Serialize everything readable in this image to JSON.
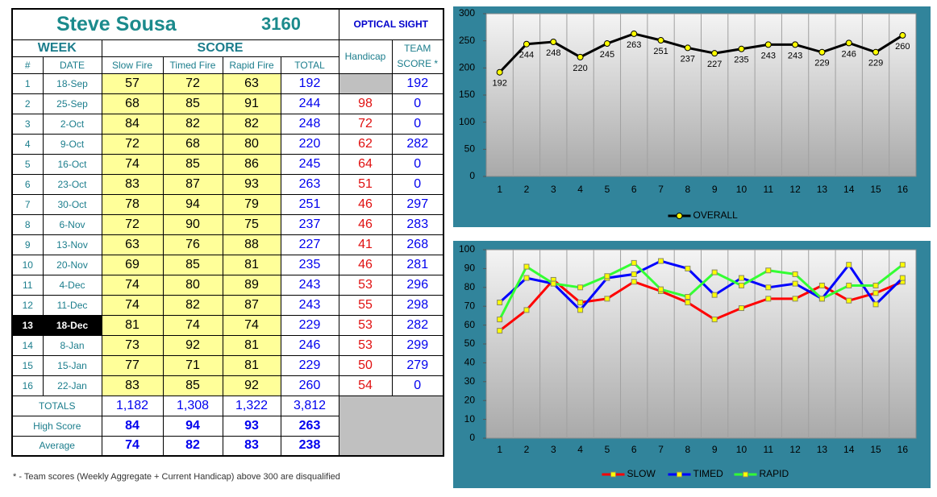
{
  "header": {
    "name": "Steve Sousa",
    "number": "3160",
    "sight": "OPTICAL SIGHT"
  },
  "table": {
    "group_headers": [
      "WEEK",
      "SCORE"
    ],
    "columns": [
      "#",
      "DATE",
      "Slow Fire",
      "Timed Fire",
      "Rapid Fire",
      "TOTAL",
      "Handicap",
      "TEAM SCORE *"
    ],
    "current_week": 13,
    "rows": [
      [
        1,
        "18-Sep",
        57,
        72,
        63,
        192,
        null,
        192
      ],
      [
        2,
        "25-Sep",
        68,
        85,
        91,
        244,
        98,
        0
      ],
      [
        3,
        "2-Oct",
        84,
        82,
        82,
        248,
        72,
        0
      ],
      [
        4,
        "9-Oct",
        72,
        68,
        80,
        220,
        62,
        282
      ],
      [
        5,
        "16-Oct",
        74,
        85,
        86,
        245,
        64,
        0
      ],
      [
        6,
        "23-Oct",
        83,
        87,
        93,
        263,
        51,
        0
      ],
      [
        7,
        "30-Oct",
        78,
        94,
        79,
        251,
        46,
        297
      ],
      [
        8,
        "6-Nov",
        72,
        90,
        75,
        237,
        46,
        283
      ],
      [
        9,
        "13-Nov",
        63,
        76,
        88,
        227,
        41,
        268
      ],
      [
        10,
        "20-Nov",
        69,
        85,
        81,
        235,
        46,
        281
      ],
      [
        11,
        "4-Dec",
        74,
        80,
        89,
        243,
        53,
        296
      ],
      [
        12,
        "11-Dec",
        74,
        82,
        87,
        243,
        55,
        298
      ],
      [
        13,
        "18-Dec",
        81,
        74,
        74,
        229,
        53,
        282
      ],
      [
        14,
        "8-Jan",
        73,
        92,
        81,
        246,
        53,
        299
      ],
      [
        15,
        "15-Jan",
        77,
        71,
        81,
        229,
        50,
        279
      ],
      [
        16,
        "22-Jan",
        83,
        85,
        92,
        260,
        54,
        0
      ]
    ],
    "summary": [
      [
        "TOTALS",
        "1,182",
        "1,308",
        "1,322",
        "3,812"
      ],
      [
        "High Score",
        84,
        94,
        93,
        263
      ],
      [
        "Average",
        74,
        82,
        83,
        238
      ]
    ]
  },
  "footnote": "* - Team scores (Weekly Aggregate + Current Handicap) above 300 are disqualified",
  "chart_data": [
    {
      "type": "line",
      "categories": [
        1,
        2,
        3,
        4,
        5,
        6,
        7,
        8,
        9,
        10,
        11,
        12,
        13,
        14,
        15,
        16
      ],
      "series": [
        {
          "name": "OVERALL",
          "color": "#000000",
          "values": [
            192,
            244,
            248,
            220,
            245,
            263,
            251,
            237,
            227,
            235,
            243,
            243,
            229,
            246,
            229,
            260
          ]
        }
      ],
      "marker": "circle",
      "marker_color": "#ffff00",
      "data_labels": true,
      "ylim": [
        0,
        300
      ],
      "yticks": [
        0,
        50,
        100,
        150,
        200,
        250,
        300
      ],
      "legend": "bottom"
    },
    {
      "type": "line",
      "categories": [
        1,
        2,
        3,
        4,
        5,
        6,
        7,
        8,
        9,
        10,
        11,
        12,
        13,
        14,
        15,
        16
      ],
      "series": [
        {
          "name": "SLOW",
          "color": "#ff0000",
          "values": [
            57,
            68,
            84,
            72,
            74,
            83,
            78,
            72,
            63,
            69,
            74,
            74,
            81,
            73,
            77,
            83
          ]
        },
        {
          "name": "TIMED",
          "color": "#0000ff",
          "values": [
            72,
            85,
            82,
            68,
            85,
            87,
            94,
            90,
            76,
            85,
            80,
            82,
            74,
            92,
            71,
            85
          ]
        },
        {
          "name": "RAPID",
          "color": "#33ff33",
          "values": [
            63,
            91,
            82,
            80,
            86,
            93,
            79,
            75,
            88,
            81,
            89,
            87,
            74,
            81,
            81,
            92
          ]
        }
      ],
      "marker": "square",
      "marker_color": "#ffff00",
      "data_labels": false,
      "ylim": [
        0,
        100
      ],
      "yticks": [
        0,
        10,
        20,
        30,
        40,
        50,
        60,
        70,
        80,
        90,
        100
      ],
      "legend": "bottom"
    }
  ]
}
